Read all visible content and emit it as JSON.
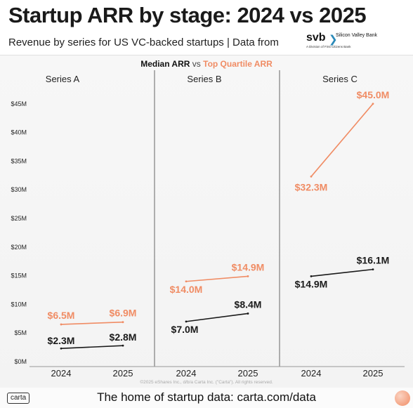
{
  "title": "Startup ARR by stage: 2024 vs 2025",
  "subtitle": "Revenue by series for US VC-backed startups | Data from",
  "svb_logo": {
    "mark": "svb",
    "name": "Silicon Valley Bank",
    "tagline": "A Division of First Citizens Bank"
  },
  "legend": {
    "median": "Median ARR",
    "vs": "vs",
    "top": "Top Quartile ARR"
  },
  "colors": {
    "median": "#1a1a1a",
    "top_quartile": "#f08c64",
    "panel": "#f5f5f5"
  },
  "chart_data": {
    "type": "line",
    "xlabel": "",
    "ylabel": "",
    "ylim": [
      0,
      48
    ],
    "y_ticks": [
      0,
      5,
      10,
      15,
      20,
      25,
      30,
      35,
      40,
      45
    ],
    "y_tick_labels": [
      "$0M",
      "$5M",
      "$10M",
      "$15M",
      "$20M",
      "$25M",
      "$30M",
      "$35M",
      "$40M",
      "$45M"
    ],
    "panels": [
      {
        "name": "Series A",
        "x": [
          "2024",
          "2025"
        ],
        "series": [
          {
            "name": "Median ARR",
            "values": [
              2.3,
              2.8
            ],
            "labels": [
              "$2.3M",
              "$2.8M"
            ]
          },
          {
            "name": "Top Quartile ARR",
            "values": [
              6.5,
              6.9
            ],
            "labels": [
              "$6.5M",
              "$6.9M"
            ]
          }
        ]
      },
      {
        "name": "Series B",
        "x": [
          "2024",
          "2025"
        ],
        "series": [
          {
            "name": "Median ARR",
            "values": [
              7.0,
              8.4
            ],
            "labels": [
              "$7.0M",
              "$8.4M"
            ]
          },
          {
            "name": "Top Quartile ARR",
            "values": [
              14.0,
              14.9
            ],
            "labels": [
              "$14.0M",
              "$14.9M"
            ]
          }
        ]
      },
      {
        "name": "Series C",
        "x": [
          "2024",
          "2025"
        ],
        "series": [
          {
            "name": "Median ARR",
            "values": [
              14.9,
              16.1
            ],
            "labels": [
              "$14.9M",
              "$16.1M"
            ]
          },
          {
            "name": "Top Quartile ARR",
            "values": [
              32.3,
              45.0
            ],
            "labels": [
              "$32.3M",
              "$45.0M"
            ]
          }
        ]
      }
    ]
  },
  "copyright": "©2025 eShares Inc., d/b/a Carta Inc. (\"Carta\"). All rights reserved.",
  "footer": {
    "logo": "carta",
    "text": "The home of startup data: carta.com/data"
  }
}
